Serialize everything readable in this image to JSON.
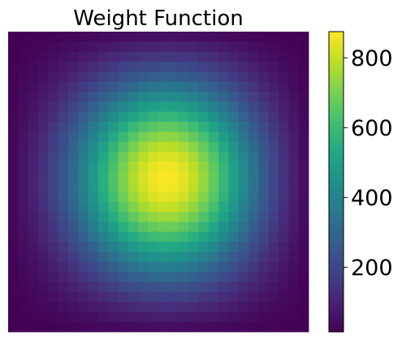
{
  "chart_data": {
    "type": "heatmap",
    "title": "Weight Function",
    "xlabel": "",
    "ylabel": "",
    "axes_visible": false,
    "colormap": "viridis",
    "grid": {
      "rows": 30,
      "cols": 30
    },
    "peak": {
      "row": 14,
      "col": 15.5,
      "value": 875
    },
    "spread": {
      "row_sigma": 8.2,
      "col_sigma": 7.6
    },
    "edge_value": 15,
    "colorbar": {
      "vmin": 15,
      "vmax": 875,
      "ticks": [
        200,
        400,
        600,
        800
      ],
      "tick_labels": [
        "200",
        "400",
        "600",
        "800"
      ],
      "position": "right"
    }
  }
}
